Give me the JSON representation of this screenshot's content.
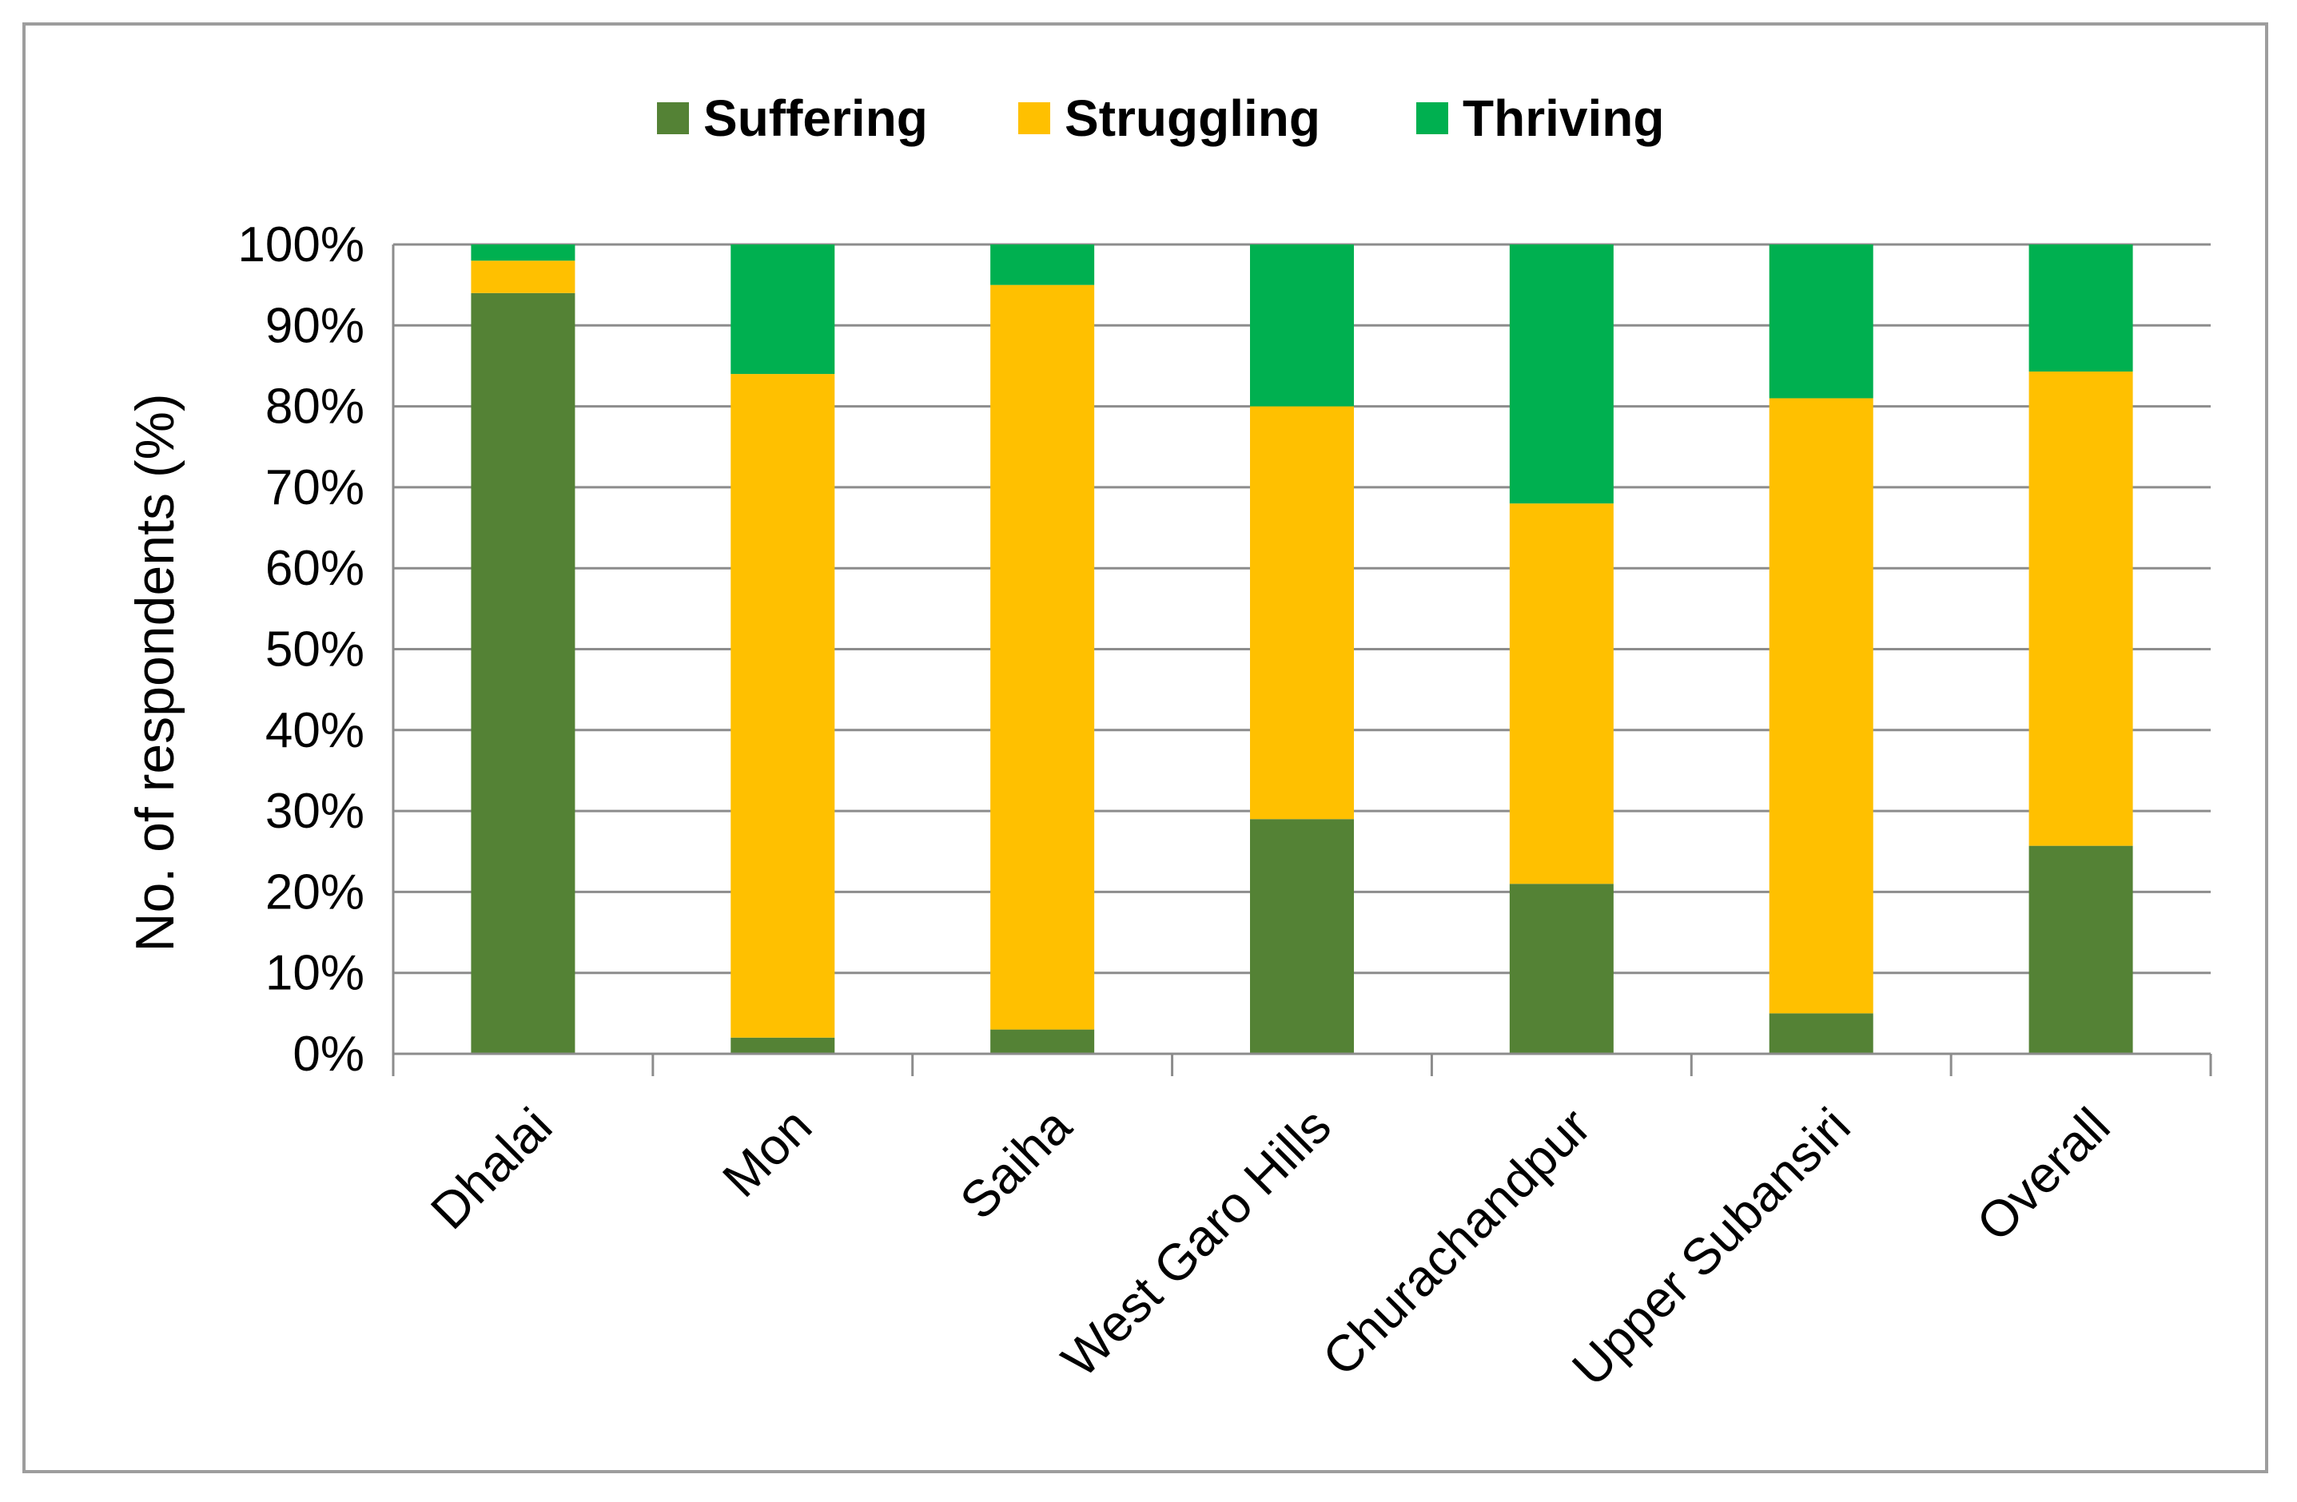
{
  "chart_data": {
    "type": "bar",
    "stacked": true,
    "percent": true,
    "categories": [
      "Dhalai",
      "Mon",
      "Saiha",
      "West Garo Hills",
      "Churachandpur",
      "Upper Subansiri",
      "Overall"
    ],
    "series": [
      {
        "name": "Suffering",
        "color": "#548235",
        "values": [
          94,
          2,
          3,
          29,
          21,
          5,
          25.7
        ]
      },
      {
        "name": "Struggling",
        "color": "#FFC000",
        "values": [
          4,
          82,
          92,
          51,
          47,
          76,
          58.6
        ]
      },
      {
        "name": "Thriving",
        "color": "#00B050",
        "values": [
          2,
          16,
          5,
          20,
          32,
          19,
          15.7
        ]
      }
    ],
    "ylabel": "No. of respondents (%)",
    "yticks": [
      "0%",
      "10%",
      "20%",
      "30%",
      "40%",
      "50%",
      "60%",
      "70%",
      "80%",
      "90%",
      "100%"
    ],
    "ylim": [
      0,
      100
    ],
    "grid": true,
    "legend": "top-center"
  }
}
